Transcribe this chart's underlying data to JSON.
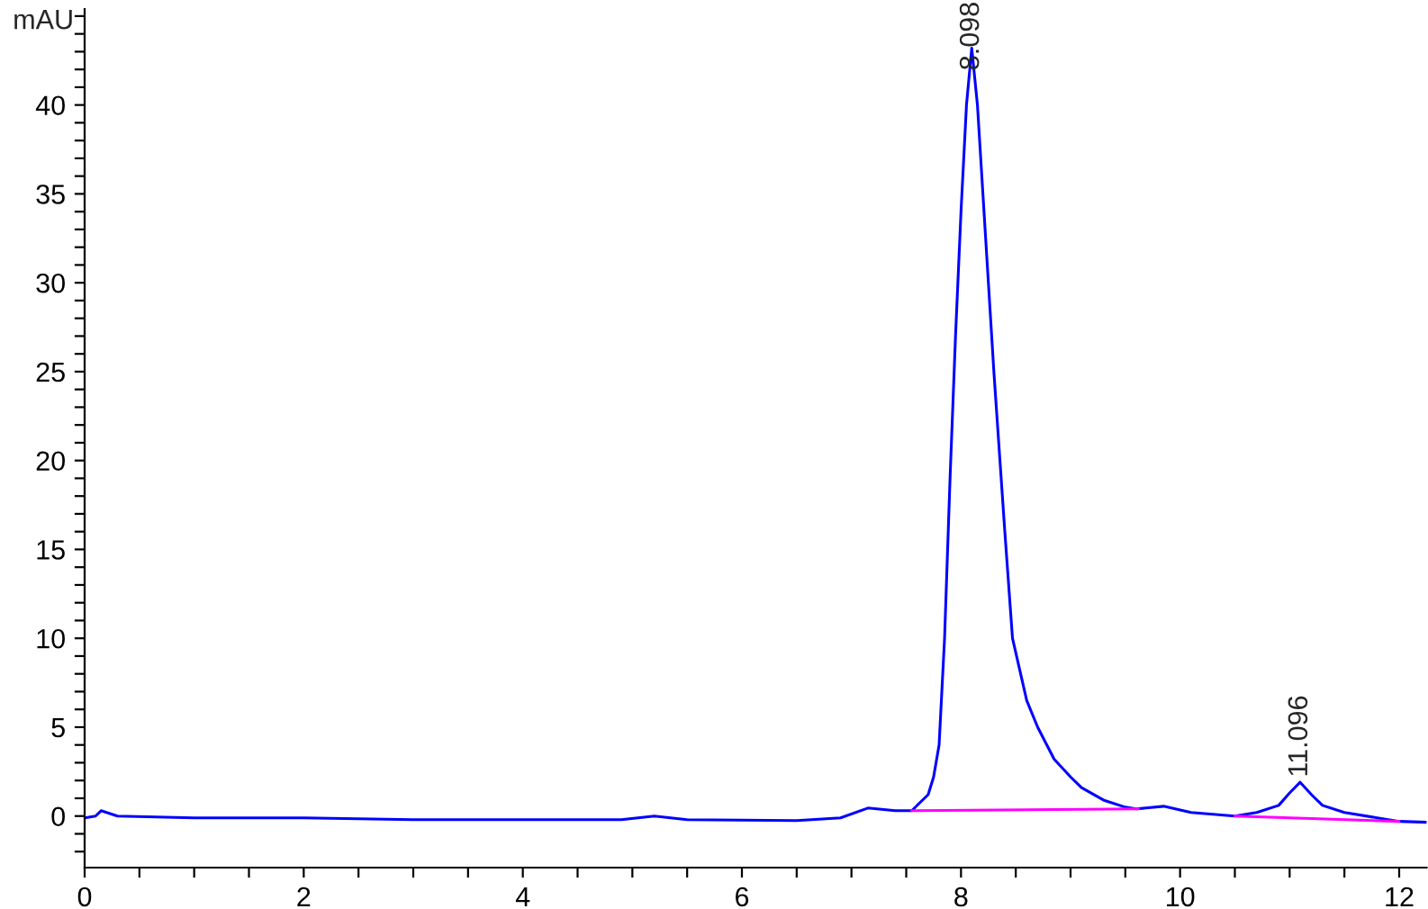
{
  "chart_data": {
    "type": "line",
    "ylabel": "mAU",
    "xlim": [
      0,
      12.25
    ],
    "ylim": [
      -2.9,
      45.4
    ],
    "xticks": [
      0,
      {
        "value": 0.5,
        "label": null
      },
      {
        "value": 1,
        "label": null
      },
      {
        "value": 1.5,
        "label": null
      },
      2,
      {
        "value": 2.5,
        "label": null
      },
      {
        "value": 3,
        "label": null
      },
      {
        "value": 3.5,
        "label": null
      },
      4,
      {
        "value": 4.5,
        "label": null
      },
      {
        "value": 5,
        "label": null
      },
      {
        "value": 5.5,
        "label": null
      },
      6,
      {
        "value": 6.5,
        "label": null
      },
      {
        "value": 7,
        "label": null
      },
      {
        "value": 7.5,
        "label": null
      },
      8,
      {
        "value": 8.5,
        "label": null
      },
      {
        "value": 9,
        "label": null
      },
      {
        "value": 9.5,
        "label": null
      },
      10,
      {
        "value": 10.5,
        "label": null
      },
      {
        "value": 11,
        "label": null
      },
      {
        "value": 11.5,
        "label": null
      },
      12
    ],
    "yticks": [
      {
        "value": -2,
        "label": null
      },
      {
        "value": -1,
        "label": null
      },
      0,
      {
        "value": 1,
        "label": null
      },
      {
        "value": 2,
        "label": null
      },
      {
        "value": 3,
        "label": null
      },
      {
        "value": 4,
        "label": null
      },
      5,
      {
        "value": 6,
        "label": null
      },
      {
        "value": 7,
        "label": null
      },
      {
        "value": 8,
        "label": null
      },
      {
        "value": 9,
        "label": null
      },
      10,
      {
        "value": 11,
        "label": null
      },
      {
        "value": 12,
        "label": null
      },
      {
        "value": 13,
        "label": null
      },
      {
        "value": 14,
        "label": null
      },
      15,
      {
        "value": 16,
        "label": null
      },
      {
        "value": 17,
        "label": null
      },
      {
        "value": 18,
        "label": null
      },
      {
        "value": 19,
        "label": null
      },
      20,
      {
        "value": 21,
        "label": null
      },
      {
        "value": 22,
        "label": null
      },
      {
        "value": 23,
        "label": null
      },
      {
        "value": 24,
        "label": null
      },
      25,
      {
        "value": 26,
        "label": null
      },
      {
        "value": 27,
        "label": null
      },
      {
        "value": 28,
        "label": null
      },
      {
        "value": 29,
        "label": null
      },
      30,
      {
        "value": 31,
        "label": null
      },
      {
        "value": 32,
        "label": null
      },
      {
        "value": 33,
        "label": null
      },
      {
        "value": 34,
        "label": null
      },
      35,
      {
        "value": 36,
        "label": null
      },
      {
        "value": 37,
        "label": null
      },
      {
        "value": 38,
        "label": null
      },
      {
        "value": 39,
        "label": null
      },
      40,
      {
        "value": 41,
        "label": null
      },
      {
        "value": 42,
        "label": null
      },
      {
        "value": 43,
        "label": null
      },
      {
        "value": 44,
        "label": null
      },
      {
        "value": 45,
        "label": null
      }
    ],
    "grid": false,
    "legend": false,
    "series": [
      {
        "color": "#0000ff",
        "x": [
          0,
          0.1,
          0.15,
          0.3,
          1.0,
          2.0,
          3.0,
          4.0,
          4.9,
          5.2,
          5.5,
          6.5,
          6.9,
          7.15,
          7.4,
          7.55,
          7.7,
          7.75,
          7.8,
          7.85,
          7.9,
          7.95,
          8.0,
          8.05,
          8.098,
          8.15,
          8.2,
          8.3,
          8.4,
          8.47,
          8.6,
          8.7,
          8.85,
          9.0,
          9.1,
          9.3,
          9.5,
          9.6,
          9.85,
          10.1,
          10.5,
          10.7,
          10.9,
          11.0,
          11.096,
          11.2,
          11.3,
          11.5,
          11.8,
          12.0,
          12.25
        ],
        "values": [
          -0.1,
          0.0,
          0.3,
          0.0,
          -0.1,
          -0.1,
          -0.2,
          -0.2,
          -0.2,
          0.0,
          -0.2,
          -0.25,
          -0.1,
          0.45,
          0.3,
          0.3,
          1.2,
          2.2,
          4,
          10,
          19,
          27,
          34,
          40,
          43.2,
          40,
          35,
          25,
          16,
          10,
          6.5,
          5,
          3.2,
          2.2,
          1.6,
          0.9,
          0.5,
          0.4,
          0.55,
          0.2,
          0.0,
          0.2,
          0.6,
          1.3,
          1.9,
          1.2,
          0.6,
          0.2,
          -0.1,
          -0.3,
          -0.35
        ]
      },
      {
        "color": "#ff00ff",
        "x": [
          7.55,
          9.62
        ],
        "values": [
          0.3,
          0.4
        ]
      },
      {
        "color": "#ff00ff",
        "x": [
          10.5,
          12.0
        ],
        "values": [
          0.0,
          -0.3
        ]
      }
    ],
    "annotations": [
      {
        "text": "8.098",
        "x": 8.098,
        "y": 43.2
      },
      {
        "text": "11.096",
        "x": 11.096,
        "y": 1.9
      }
    ]
  }
}
